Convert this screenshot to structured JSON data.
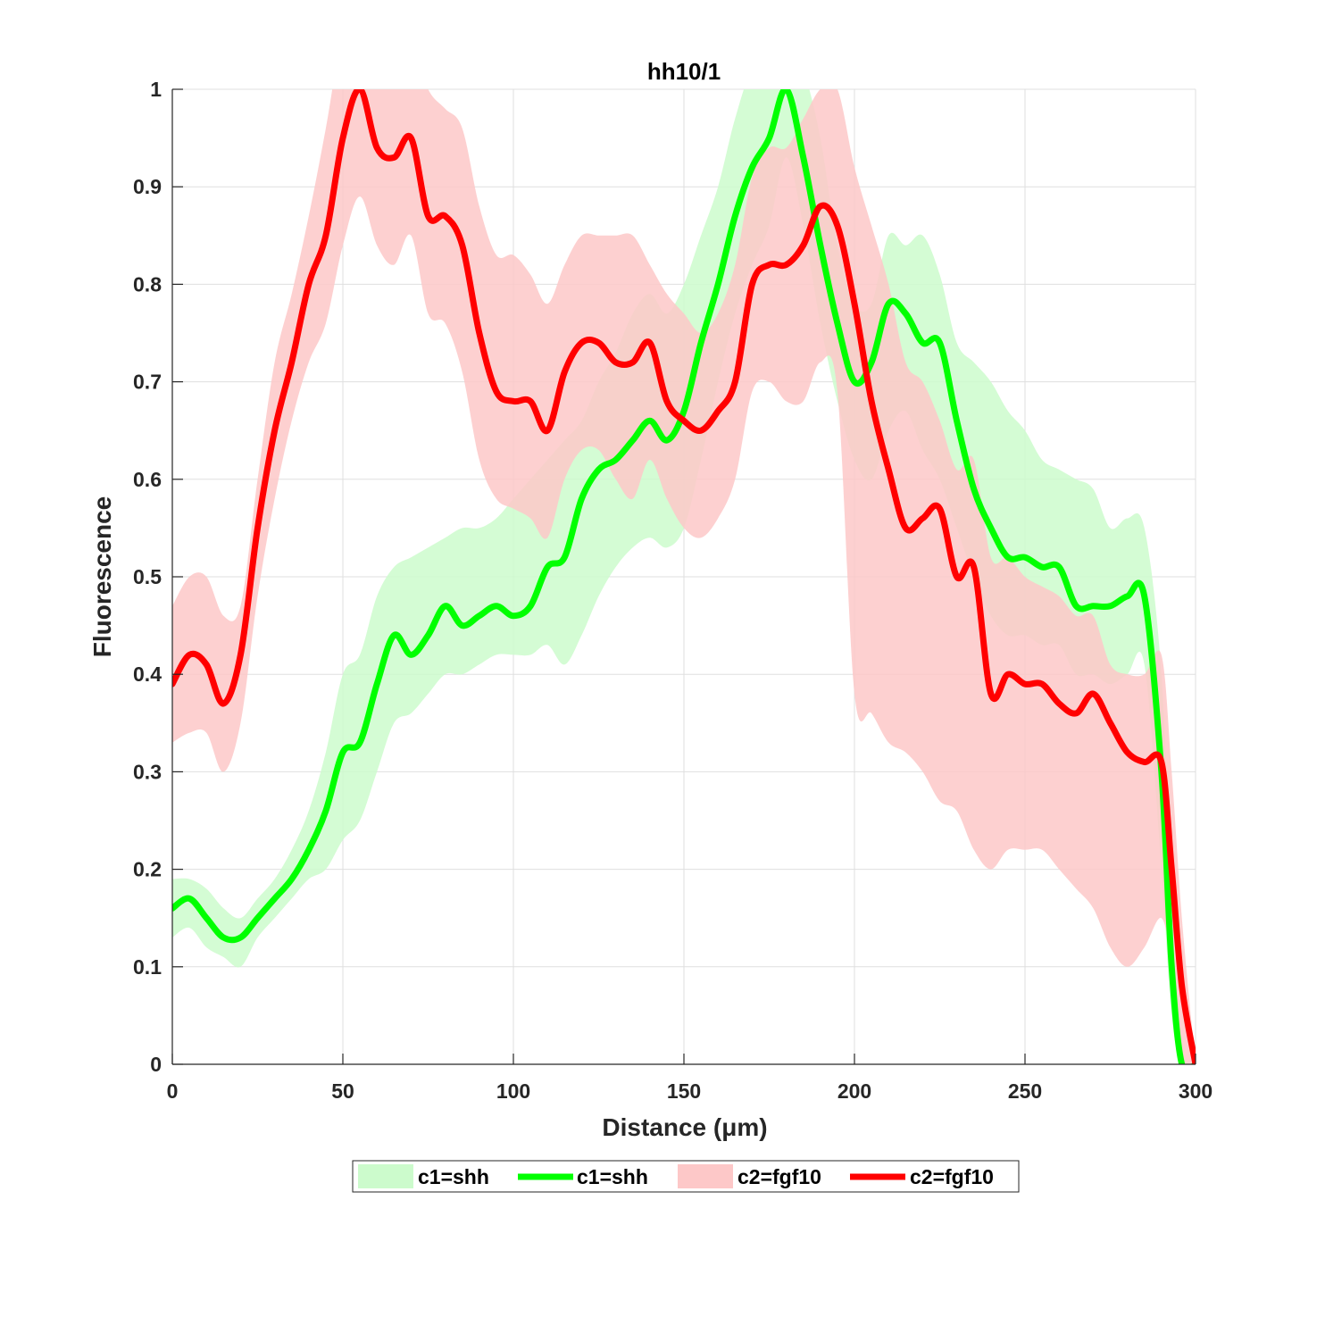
{
  "chart_data": {
    "type": "line",
    "title": "hh10/1",
    "xlabel": "Distance  (μm)",
    "ylabel": "Fluorescence",
    "xlim": [
      0,
      300
    ],
    "ylim": [
      0,
      1
    ],
    "xticks": [
      "0",
      "50",
      "100",
      "150",
      "200",
      "250",
      "300"
    ],
    "yticks": [
      "0",
      "0.1",
      "0.2",
      "0.3",
      "0.4",
      "0.5",
      "0.6",
      "0.7",
      "0.8",
      "0.9",
      "1"
    ],
    "grid": true,
    "legend_position": "bottom, below axes, horizontal",
    "legend": [
      "c1=shh",
      "c1=shh",
      "c2=fgf10",
      "c2=fgf10"
    ],
    "series": [
      {
        "name": "c1=shh",
        "color": "#00ff00",
        "band_color": "#ccfbcc",
        "x": [
          0,
          5,
          10,
          15,
          20,
          25,
          30,
          35,
          40,
          45,
          50,
          55,
          60,
          65,
          70,
          75,
          80,
          85,
          90,
          95,
          100,
          105,
          110,
          115,
          120,
          125,
          130,
          135,
          140,
          145,
          150,
          155,
          160,
          165,
          170,
          175,
          180,
          185,
          190,
          195,
          200,
          205,
          210,
          215,
          220,
          225,
          230,
          235,
          240,
          245,
          250,
          255,
          260,
          265,
          270,
          275,
          280,
          285,
          290,
          293,
          296,
          300
        ],
        "y": [
          0.16,
          0.17,
          0.15,
          0.13,
          0.13,
          0.15,
          0.17,
          0.19,
          0.22,
          0.26,
          0.32,
          0.33,
          0.39,
          0.44,
          0.42,
          0.44,
          0.47,
          0.45,
          0.46,
          0.47,
          0.46,
          0.47,
          0.51,
          0.52,
          0.58,
          0.61,
          0.62,
          0.64,
          0.66,
          0.64,
          0.67,
          0.74,
          0.8,
          0.87,
          0.92,
          0.95,
          1.0,
          0.93,
          0.84,
          0.76,
          0.7,
          0.72,
          0.78,
          0.77,
          0.74,
          0.74,
          0.66,
          0.59,
          0.55,
          0.52,
          0.52,
          0.51,
          0.51,
          0.47,
          0.47,
          0.47,
          0.48,
          0.48,
          0.3,
          0.1,
          0.0,
          0.0
        ],
        "upper": [
          0.19,
          0.19,
          0.18,
          0.16,
          0.15,
          0.17,
          0.19,
          0.22,
          0.26,
          0.32,
          0.4,
          0.42,
          0.48,
          0.51,
          0.52,
          0.53,
          0.54,
          0.55,
          0.55,
          0.56,
          0.58,
          0.6,
          0.62,
          0.64,
          0.66,
          0.7,
          0.73,
          0.77,
          0.79,
          0.77,
          0.8,
          0.85,
          0.9,
          0.97,
          1.02,
          1.02,
          1.05,
          1.02,
          0.95,
          0.84,
          0.78,
          0.78,
          0.85,
          0.84,
          0.85,
          0.81,
          0.74,
          0.72,
          0.7,
          0.67,
          0.65,
          0.62,
          0.61,
          0.6,
          0.59,
          0.55,
          0.56,
          0.55,
          0.4,
          0.15,
          0.0,
          0.0
        ],
        "lower": [
          0.13,
          0.14,
          0.12,
          0.11,
          0.1,
          0.13,
          0.15,
          0.17,
          0.19,
          0.2,
          0.23,
          0.25,
          0.3,
          0.35,
          0.36,
          0.38,
          0.4,
          0.4,
          0.41,
          0.42,
          0.42,
          0.42,
          0.43,
          0.41,
          0.44,
          0.48,
          0.51,
          0.53,
          0.54,
          0.53,
          0.55,
          0.62,
          0.7,
          0.77,
          0.82,
          0.86,
          0.93,
          0.86,
          0.76,
          0.68,
          0.62,
          0.6,
          0.65,
          0.67,
          0.63,
          0.6,
          0.55,
          0.5,
          0.46,
          0.44,
          0.44,
          0.43,
          0.43,
          0.4,
          0.4,
          0.39,
          0.4,
          0.41,
          0.2,
          0.05,
          0.0,
          0.0
        ]
      },
      {
        "name": "c2=fgf10",
        "color": "#ff0000",
        "band_color": "#fdc8c8",
        "x": [
          0,
          5,
          10,
          15,
          20,
          25,
          30,
          35,
          40,
          45,
          50,
          55,
          60,
          65,
          70,
          75,
          80,
          85,
          90,
          95,
          100,
          105,
          110,
          115,
          120,
          125,
          130,
          135,
          140,
          145,
          150,
          155,
          160,
          165,
          170,
          175,
          180,
          185,
          190,
          195,
          200,
          205,
          210,
          215,
          220,
          225,
          230,
          235,
          240,
          245,
          250,
          255,
          260,
          265,
          270,
          275,
          280,
          285,
          290,
          293,
          296,
          300
        ],
        "y": [
          0.39,
          0.42,
          0.41,
          0.37,
          0.42,
          0.55,
          0.65,
          0.72,
          0.8,
          0.85,
          0.95,
          1.0,
          0.94,
          0.93,
          0.95,
          0.87,
          0.87,
          0.84,
          0.75,
          0.69,
          0.68,
          0.68,
          0.65,
          0.71,
          0.74,
          0.74,
          0.72,
          0.72,
          0.74,
          0.68,
          0.66,
          0.65,
          0.67,
          0.7,
          0.8,
          0.82,
          0.82,
          0.84,
          0.88,
          0.86,
          0.78,
          0.68,
          0.61,
          0.55,
          0.56,
          0.57,
          0.5,
          0.51,
          0.38,
          0.4,
          0.39,
          0.39,
          0.37,
          0.36,
          0.38,
          0.35,
          0.32,
          0.31,
          0.31,
          0.2,
          0.08,
          0.0
        ],
        "upper": [
          0.47,
          0.5,
          0.5,
          0.46,
          0.47,
          0.6,
          0.72,
          0.79,
          0.87,
          0.96,
          1.06,
          1.1,
          1.05,
          1.02,
          1.05,
          1.0,
          0.98,
          0.96,
          0.88,
          0.83,
          0.83,
          0.81,
          0.78,
          0.82,
          0.85,
          0.85,
          0.85,
          0.85,
          0.82,
          0.79,
          0.77,
          0.75,
          0.77,
          0.82,
          0.91,
          0.94,
          0.94,
          0.97,
          1.0,
          1.0,
          0.92,
          0.86,
          0.8,
          0.72,
          0.7,
          0.66,
          0.61,
          0.62,
          0.52,
          0.52,
          0.5,
          0.49,
          0.48,
          0.46,
          0.46,
          0.41,
          0.4,
          0.4,
          0.42,
          0.3,
          0.15,
          0.0
        ],
        "lower": [
          0.33,
          0.34,
          0.34,
          0.3,
          0.35,
          0.48,
          0.58,
          0.66,
          0.72,
          0.76,
          0.84,
          0.89,
          0.84,
          0.82,
          0.85,
          0.77,
          0.76,
          0.71,
          0.62,
          0.58,
          0.57,
          0.56,
          0.54,
          0.6,
          0.63,
          0.63,
          0.6,
          0.58,
          0.62,
          0.58,
          0.55,
          0.54,
          0.56,
          0.6,
          0.69,
          0.7,
          0.68,
          0.68,
          0.72,
          0.69,
          0.38,
          0.36,
          0.33,
          0.32,
          0.3,
          0.27,
          0.26,
          0.22,
          0.2,
          0.22,
          0.22,
          0.22,
          0.2,
          0.18,
          0.16,
          0.12,
          0.1,
          0.12,
          0.15,
          0.1,
          0.0,
          0.0
        ]
      }
    ]
  }
}
